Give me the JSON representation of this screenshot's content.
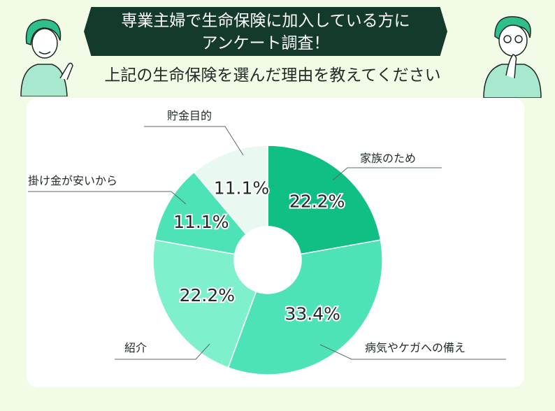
{
  "header": {
    "banner_line1": "専業主婦で生命保険に加入している方に",
    "banner_line2": "アンケート調査！",
    "question": "上記の生命保険を選んだ理由を教えてください"
  },
  "chart_data": {
    "type": "pie",
    "donut": true,
    "categories": [
      "家族のため",
      "病気やケガへの備え",
      "紹介",
      "掛け金が安いから",
      "貯金目的"
    ],
    "values": [
      22.2,
      33.4,
      22.2,
      11.1,
      11.1
    ],
    "value_labels": [
      "22.2%",
      "33.4%",
      "22.2%",
      "11.1%",
      "11.1%"
    ],
    "colors": [
      "#0fbf84",
      "#4ee3b6",
      "#7ff0cc",
      "#4ee3b6",
      "#e9f8f0"
    ],
    "legend": "callout-labels"
  }
}
